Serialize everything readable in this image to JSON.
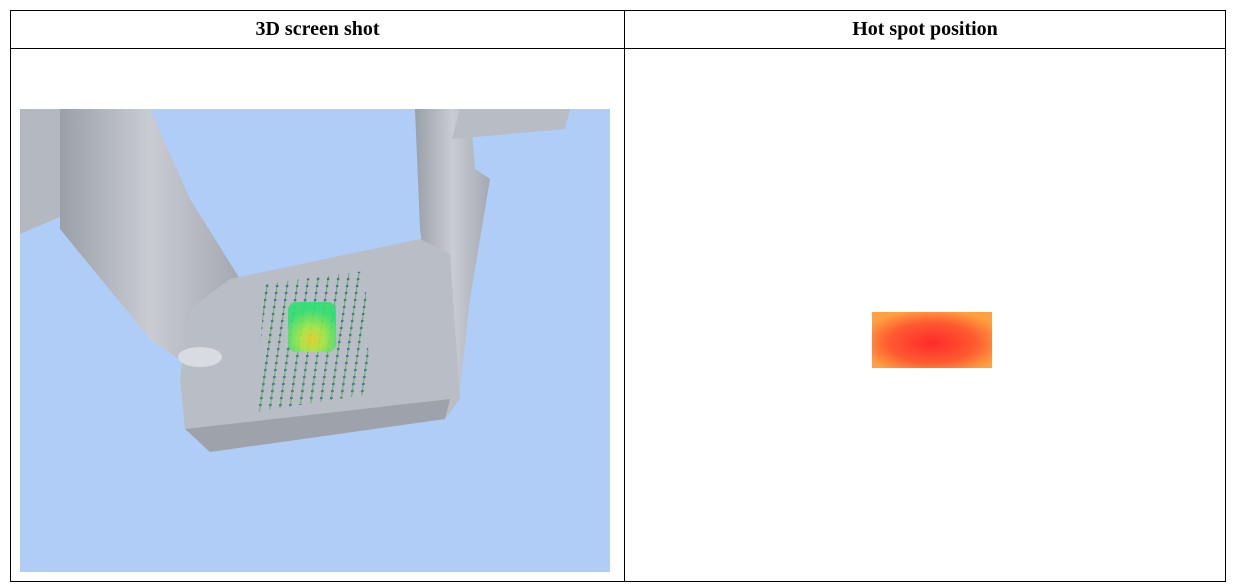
{
  "table": {
    "header": [
      "3D screen shot",
      "Hot spot position"
    ]
  }
}
